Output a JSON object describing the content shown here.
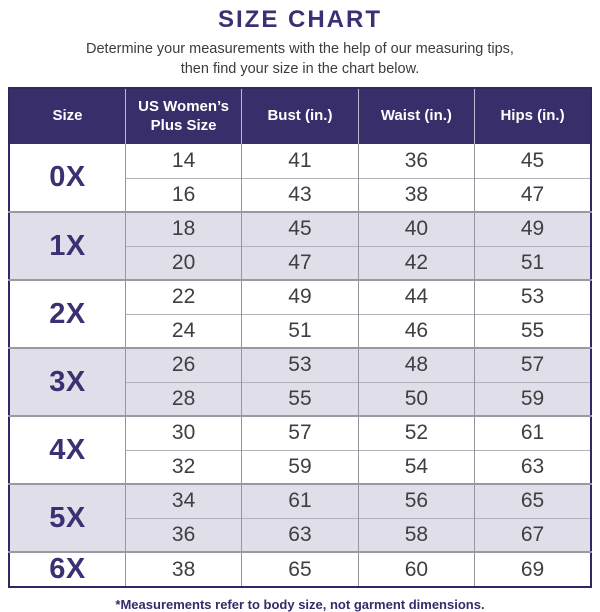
{
  "header": {
    "title": "SIZE CHART",
    "subtitle_line1": "Determine your measurements with the help of our measuring tips,",
    "subtitle_line2": "then find your size in the chart below."
  },
  "footnote": {
    "text": "*Measurements refer to body size, not garment dimensions."
  },
  "colors": {
    "accent_indigo": "#382e6a",
    "alt_row_lavender": "#e0dee8",
    "group_divider_gray": "#9a98a2",
    "number_text": "#3f3e41",
    "outer_border": "#2e2963"
  },
  "chart_data": {
    "type": "table",
    "title": "SIZE CHART",
    "columns": [
      "Size",
      "US Women’s Plus Size",
      "Bust (in.)",
      "Waist (in.)",
      "Hips (in.)"
    ],
    "groups": [
      {
        "size": "0X",
        "rows": [
          [
            "14",
            "41",
            "36",
            "45"
          ],
          [
            "16",
            "43",
            "38",
            "47"
          ]
        ]
      },
      {
        "size": "1X",
        "rows": [
          [
            "18",
            "45",
            "40",
            "49"
          ],
          [
            "20",
            "47",
            "42",
            "51"
          ]
        ]
      },
      {
        "size": "2X",
        "rows": [
          [
            "22",
            "49",
            "44",
            "53"
          ],
          [
            "24",
            "51",
            "46",
            "55"
          ]
        ]
      },
      {
        "size": "3X",
        "rows": [
          [
            "26",
            "53",
            "48",
            "57"
          ],
          [
            "28",
            "55",
            "50",
            "59"
          ]
        ]
      },
      {
        "size": "4X",
        "rows": [
          [
            "30",
            "57",
            "52",
            "61"
          ],
          [
            "32",
            "59",
            "54",
            "63"
          ]
        ]
      },
      {
        "size": "5X",
        "rows": [
          [
            "34",
            "61",
            "56",
            "65"
          ],
          [
            "36",
            "63",
            "58",
            "67"
          ]
        ]
      },
      {
        "size": "6X",
        "rows": [
          [
            "38",
            "65",
            "60",
            "69"
          ]
        ]
      }
    ]
  }
}
